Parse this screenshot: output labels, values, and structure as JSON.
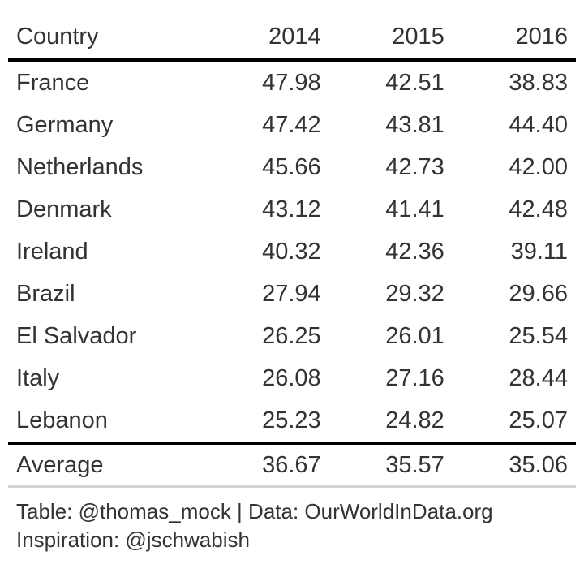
{
  "chart_data": {
    "type": "table",
    "columns": [
      "Country",
      "2014",
      "2015",
      "2016"
    ],
    "rows": [
      {
        "country": "France",
        "values": [
          "47.98",
          "42.51",
          "38.83"
        ]
      },
      {
        "country": "Germany",
        "values": [
          "47.42",
          "43.81",
          "44.40"
        ]
      },
      {
        "country": "Netherlands",
        "values": [
          "45.66",
          "42.73",
          "42.00"
        ]
      },
      {
        "country": "Denmark",
        "values": [
          "43.12",
          "41.41",
          "42.48"
        ]
      },
      {
        "country": "Ireland",
        "values": [
          "40.32",
          "42.36",
          "39.11"
        ]
      },
      {
        "country": "Brazil",
        "values": [
          "27.94",
          "29.32",
          "29.66"
        ]
      },
      {
        "country": "El Salvador",
        "values": [
          "26.25",
          "26.01",
          "25.54"
        ]
      },
      {
        "country": "Italy",
        "values": [
          "26.08",
          "27.16",
          "28.44"
        ]
      },
      {
        "country": "Lebanon",
        "values": [
          "25.23",
          "24.82",
          "25.07"
        ]
      }
    ],
    "summary_row": {
      "label": "Average",
      "values": [
        "36.67",
        "35.57",
        "35.06"
      ]
    },
    "source_note": [
      "Table: @thomas_mock | Data: OurWorldInData.org",
      "Inspiration: @jschwabish"
    ]
  }
}
